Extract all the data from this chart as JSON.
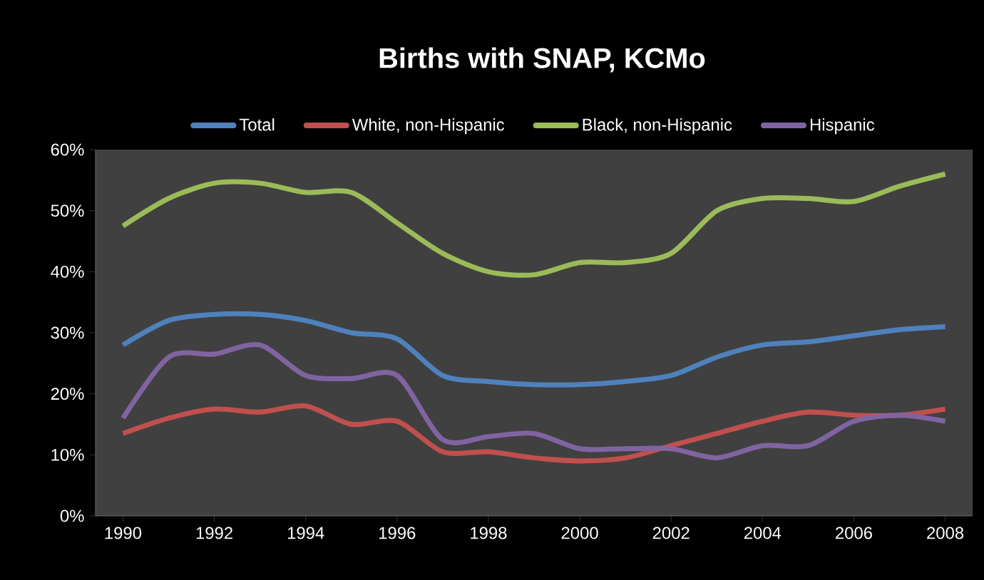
{
  "chart_data": {
    "type": "line",
    "title": "Births with SNAP, KCMo",
    "x": [
      1990,
      1991,
      1992,
      1993,
      1994,
      1995,
      1996,
      1997,
      1998,
      1999,
      2000,
      2001,
      2002,
      2003,
      2004,
      2005,
      2006,
      2007,
      2008
    ],
    "series": [
      {
        "name": "Total",
        "color": "#4f81bd",
        "values": [
          28,
          32,
          33,
          33,
          32,
          30,
          29,
          23,
          22,
          21.5,
          21.5,
          22,
          23,
          26,
          28,
          28.5,
          29.5,
          30.5,
          31
        ]
      },
      {
        "name": "White, non-Hispanic",
        "color": "#c0504d",
        "values": [
          13.5,
          16,
          17.5,
          17,
          18,
          15,
          15.5,
          10.5,
          10.5,
          9.5,
          9,
          9.5,
          11.5,
          13.5,
          15.5,
          17,
          16.5,
          16.5,
          17.5
        ]
      },
      {
        "name": "Black, non-Hispanic",
        "color": "#9bbb59",
        "values": [
          47.5,
          52,
          54.5,
          54.5,
          53,
          53,
          48,
          43,
          40,
          39.5,
          41.5,
          41.5,
          43,
          50,
          52,
          52,
          51.5,
          54,
          56
        ]
      },
      {
        "name": "Hispanic",
        "color": "#8064a2",
        "values": [
          16,
          26,
          26.5,
          28,
          23,
          22.5,
          23,
          12.5,
          13,
          13.5,
          11,
          11,
          11,
          9.5,
          11.5,
          11.5,
          15.5,
          16.5,
          15.5
        ]
      }
    ],
    "xlim": [
      1989.4,
      2008.6
    ],
    "xticks": [
      1990,
      1992,
      1994,
      1996,
      1998,
      2000,
      2002,
      2004,
      2006,
      2008
    ],
    "ylim": [
      0,
      60
    ],
    "yticks": [
      {
        "value": 0,
        "label": "0%"
      },
      {
        "value": 10,
        "label": "10%"
      },
      {
        "value": 20,
        "label": "20%"
      },
      {
        "value": 30,
        "label": "30%"
      },
      {
        "value": 40,
        "label": "40%"
      },
      {
        "value": 50,
        "label": "50%"
      },
      {
        "value": 60,
        "label": "60%"
      }
    ],
    "legend": "top",
    "grid": false
  }
}
